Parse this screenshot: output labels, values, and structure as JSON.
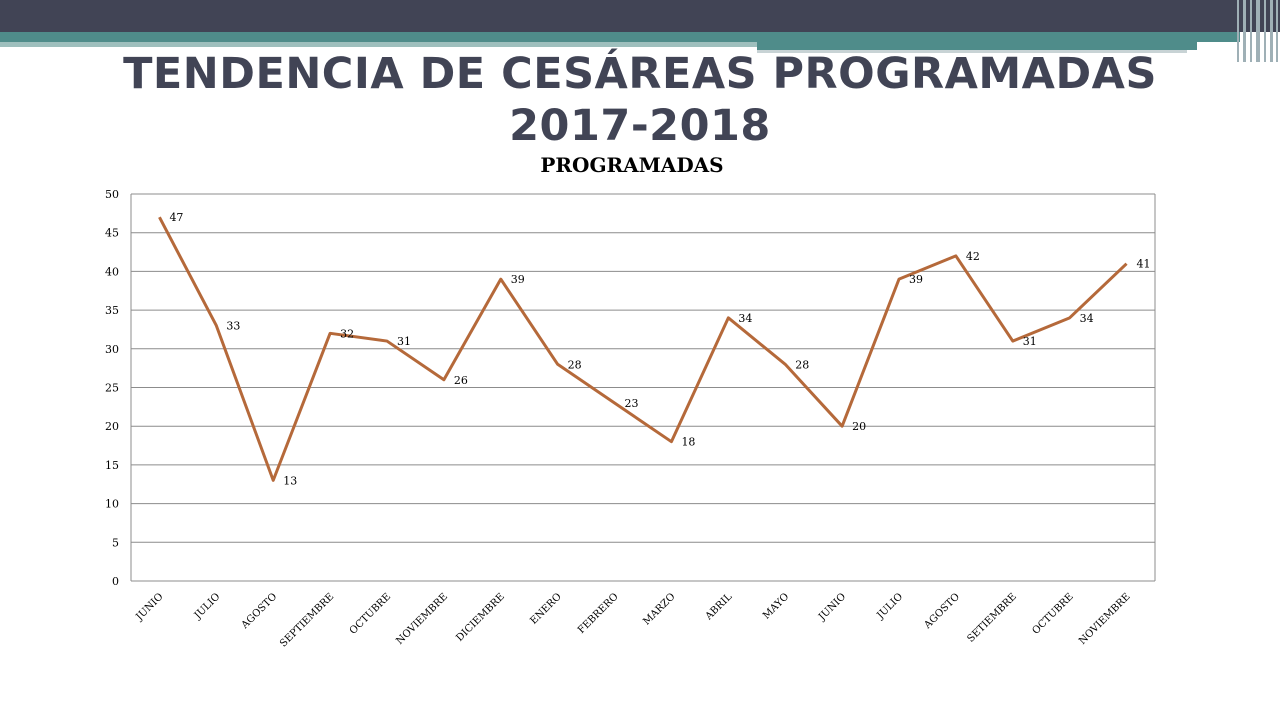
{
  "slide": {
    "title_line1": "TENDENCIA DE CESÁREAS PROGRAMADAS",
    "title_line2": "2017-2018"
  },
  "theme": {
    "bar_dark": "#414455",
    "bar_teal": "#4f8c8a",
    "line_color": "#b5693a"
  },
  "chart_data": {
    "type": "line",
    "title": "PROGRAMADAS",
    "xlabel": "",
    "ylabel": "",
    "categories": [
      "JUNIO",
      "JULIO",
      "AGOSTO",
      "SEPTIEMBRE",
      "OCTUBRE",
      "NOVIEMBRE",
      "DICIEMBRE",
      "ENERO",
      "FEBRERO",
      "MARZO",
      "ABRIL",
      "MAYO",
      "JUNIO",
      "JULIO",
      "AGOSTO",
      "SETIEMBRE",
      "OCTUBRE",
      "NOVIEMBRE"
    ],
    "series": [
      {
        "values": [
          47,
          33,
          13,
          32,
          31,
          26,
          39,
          28,
          23,
          18,
          34,
          28,
          20,
          39,
          42,
          31,
          34,
          41
        ]
      }
    ],
    "ylim": [
      0,
      50
    ],
    "yticks": [
      0,
      5,
      10,
      15,
      20,
      25,
      30,
      35,
      40,
      45,
      50
    ],
    "grid": true,
    "legend": "none",
    "data_labels": true
  }
}
